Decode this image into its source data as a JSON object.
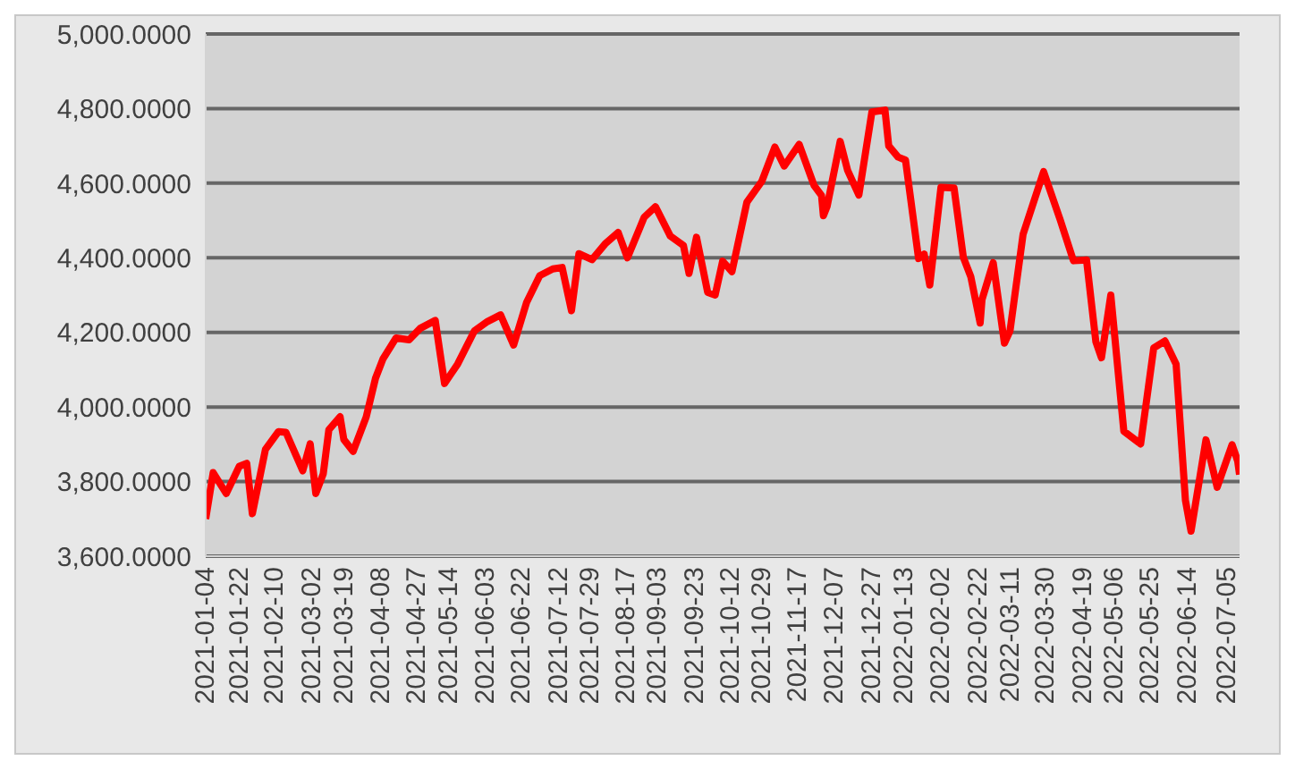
{
  "chart_data": {
    "type": "line",
    "x": [
      "2021-01-04",
      "2021-01-08",
      "2021-01-15",
      "2021-01-22",
      "2021-01-26",
      "2021-01-29",
      "2021-02-05",
      "2021-02-12",
      "2021-02-16",
      "2021-02-25",
      "2021-03-01",
      "2021-03-04",
      "2021-03-08",
      "2021-03-11",
      "2021-03-17",
      "2021-03-19",
      "2021-03-24",
      "2021-03-31",
      "2021-04-05",
      "2021-04-09",
      "2021-04-16",
      "2021-04-23",
      "2021-04-29",
      "2021-05-07",
      "2021-05-12",
      "2021-05-19",
      "2021-05-28",
      "2021-06-04",
      "2021-06-11",
      "2021-06-18",
      "2021-06-25",
      "2021-07-02",
      "2021-07-09",
      "2021-07-14",
      "2021-07-19",
      "2021-07-23",
      "2021-07-30",
      "2021-08-06",
      "2021-08-13",
      "2021-08-18",
      "2021-08-27",
      "2021-09-02",
      "2021-09-10",
      "2021-09-17",
      "2021-09-20",
      "2021-09-24",
      "2021-09-30",
      "2021-10-04",
      "2021-10-08",
      "2021-10-13",
      "2021-10-21",
      "2021-10-29",
      "2021-11-05",
      "2021-11-10",
      "2021-11-18",
      "2021-11-26",
      "2021-11-30",
      "2021-12-01",
      "2021-12-03",
      "2021-12-10",
      "2021-12-14",
      "2021-12-20",
      "2021-12-27",
      "2022-01-03",
      "2022-01-05",
      "2022-01-10",
      "2022-01-14",
      "2022-01-21",
      "2022-01-24",
      "2022-01-27",
      "2022-02-02",
      "2022-02-09",
      "2022-02-14",
      "2022-02-18",
      "2022-02-23",
      "2022-02-24",
      "2022-03-02",
      "2022-03-08",
      "2022-03-11",
      "2022-03-18",
      "2022-03-29",
      "2022-04-07",
      "2022-04-14",
      "2022-04-21",
      "2022-04-26",
      "2022-04-29",
      "2022-05-04",
      "2022-05-11",
      "2022-05-20",
      "2022-05-27",
      "2022-06-02",
      "2022-06-08",
      "2022-06-13",
      "2022-06-16",
      "2022-06-24",
      "2022-06-30",
      "2022-07-08",
      "2022-07-11",
      "2022-07-12"
    ],
    "series": [
      {
        "color": "#ff0000",
        "values": [
          3700,
          3824,
          3768,
          3841,
          3849,
          3714,
          3886,
          3934,
          3932,
          3829,
          3901,
          3768,
          3821,
          3939,
          3974,
          3913,
          3881,
          3973,
          4077,
          4129,
          4185,
          4180,
          4211,
          4232,
          4063,
          4115,
          4204,
          4229,
          4247,
          4166,
          4281,
          4352,
          4370,
          4374,
          4258,
          4411,
          4395,
          4437,
          4468,
          4400,
          4509,
          4537,
          4458,
          4433,
          4358,
          4455,
          4307,
          4300,
          4391,
          4363,
          4549,
          4605,
          4697,
          4646,
          4704,
          4594,
          4567,
          4513,
          4538,
          4712,
          4634,
          4568,
          4791,
          4796,
          4700,
          4670,
          4662,
          4398,
          4410,
          4327,
          4589,
          4587,
          4401,
          4349,
          4225,
          4288,
          4387,
          4171,
          4204,
          4463,
          4631,
          4500,
          4392,
          4394,
          4175,
          4132,
          4300,
          3935,
          3901,
          4158,
          4177,
          4115,
          3750,
          3667,
          3912,
          3785,
          3899,
          3855,
          3819
        ]
      }
    ],
    "xlim": [
      "2021-01-04",
      "2022-07-12"
    ],
    "xticks": [
      "2021-01-04",
      "2021-01-22",
      "2021-02-10",
      "2021-03-02",
      "2021-03-19",
      "2021-04-08",
      "2021-04-27",
      "2021-05-14",
      "2021-06-03",
      "2021-06-22",
      "2021-07-12",
      "2021-07-29",
      "2021-08-17",
      "2021-09-03",
      "2021-09-23",
      "2021-10-12",
      "2021-10-29",
      "2021-11-17",
      "2021-12-07",
      "2021-12-27",
      "2022-01-13",
      "2022-02-02",
      "2022-02-22",
      "2022-03-11",
      "2022-03-30",
      "2022-04-19",
      "2022-05-06",
      "2022-05-25",
      "2022-06-14",
      "2022-07-05"
    ],
    "ylim": [
      3600,
      5000
    ],
    "yticks": [
      {
        "value": 3600,
        "label": "3,600.0000"
      },
      {
        "value": 3800,
        "label": "3,800.0000"
      },
      {
        "value": 4000,
        "label": "4,000.0000"
      },
      {
        "value": 4200,
        "label": "4,200.0000"
      },
      {
        "value": 4400,
        "label": "4,400.0000"
      },
      {
        "value": 4600,
        "label": "4,600.0000"
      },
      {
        "value": 4800,
        "label": "4,800.0000"
      },
      {
        "value": 5000,
        "label": "5,000.0000"
      }
    ],
    "grid": "y",
    "marker": "none",
    "line_style": "solid"
  }
}
